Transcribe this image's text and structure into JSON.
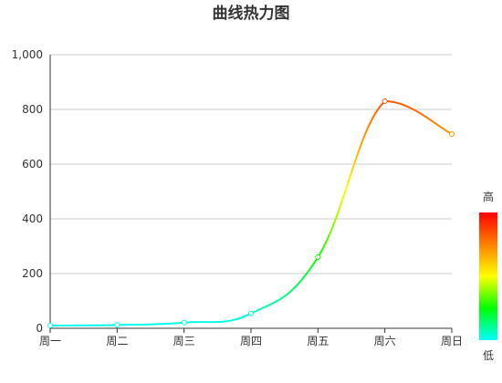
{
  "chart_data": {
    "type": "line",
    "title": "曲线热力图",
    "categories": [
      "周一",
      "周二",
      "周三",
      "周四",
      "周五",
      "周六",
      "周日"
    ],
    "series": [
      {
        "values": [
          10,
          12,
          21,
          54,
          260,
          830,
          710
        ]
      }
    ],
    "ylim": [
      0,
      1000
    ],
    "yticks": [
      "0",
      "200",
      "400",
      "600",
      "800",
      "1,000"
    ],
    "ytick_values": [
      0,
      200,
      400,
      600,
      800,
      1000
    ],
    "grid": true,
    "smooth": true,
    "visual_map": {
      "high_label": "高",
      "low_label": "低",
      "min": 0,
      "max": 1000,
      "colors": [
        "#00ffff",
        "#00ff00",
        "#ffff00",
        "#ff8000",
        "#ff0000"
      ]
    },
    "colors": {
      "axis": "#333333",
      "grid": "#cccccc",
      "text": "#333333"
    }
  }
}
